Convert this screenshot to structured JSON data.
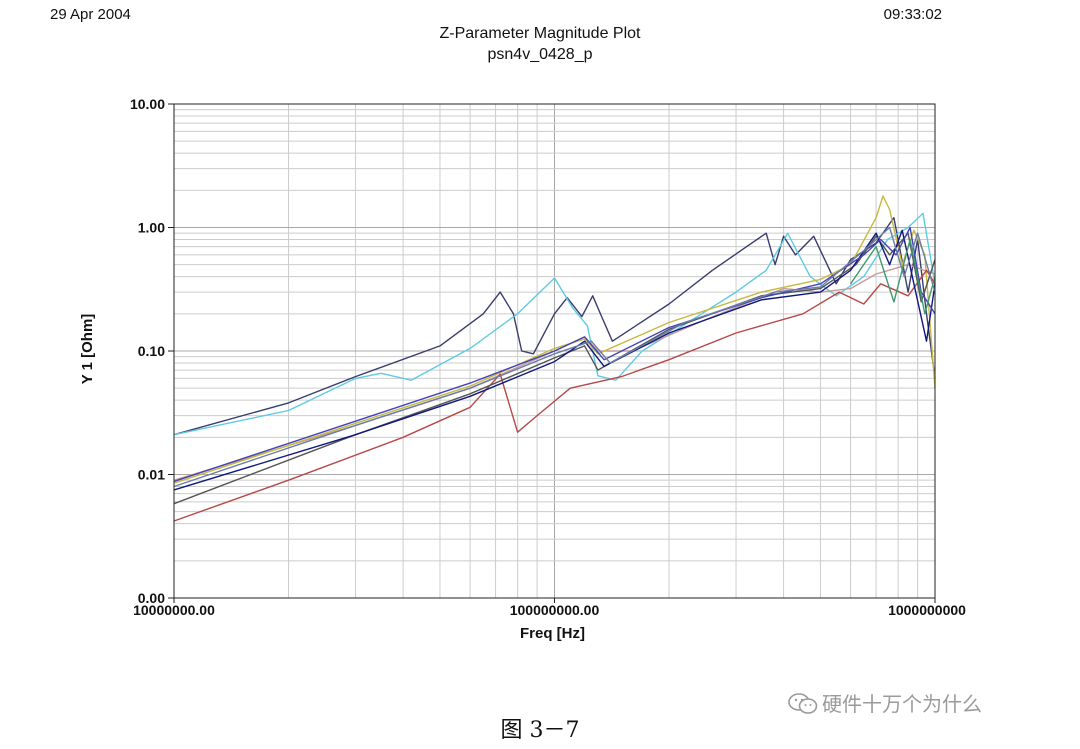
{
  "header": {
    "date": "29 Apr 2004",
    "time": "09:33:02"
  },
  "caption": "图 3－7",
  "watermark": {
    "text": "硬件十万个为什么",
    "icon": "wechat-icon"
  },
  "colors": {
    "grid": "#cccccc",
    "frame": "#222222",
    "background": "#ffffff"
  },
  "chart_data": {
    "type": "line",
    "title": "Z-Parameter Magnitude Plot",
    "subtitle": "psn4v_0428_p",
    "xlabel": "Freq [Hz]",
    "ylabel": "Y 1  [Ohm]",
    "x_scale": "log",
    "y_scale": "log",
    "xlim": [
      10000000,
      1000000000
    ],
    "ylim": [
      0.001,
      10
    ],
    "x_ticks": [
      10000000,
      100000000,
      1000000000
    ],
    "x_tick_labels": [
      "10000000.00",
      "100000000.00",
      "1000000000"
    ],
    "y_ticks": [
      0.001,
      0.01,
      0.1,
      1,
      10
    ],
    "y_tick_labels": [
      "0.00",
      "0.01",
      "0.10",
      "1.00",
      "10.00"
    ],
    "grid": true,
    "series": [
      {
        "color": "#3a3d6e",
        "points": [
          [
            10000000,
            0.021
          ],
          [
            20000000,
            0.038
          ],
          [
            30000000,
            0.062
          ],
          [
            50000000,
            0.11
          ],
          [
            65000000,
            0.2
          ],
          [
            72000000,
            0.3
          ],
          [
            78000000,
            0.2
          ],
          [
            82000000,
            0.1
          ],
          [
            88000000,
            0.095
          ],
          [
            100000000,
            0.2
          ],
          [
            108000000,
            0.27
          ],
          [
            118000000,
            0.19
          ],
          [
            126000000,
            0.28
          ],
          [
            134000000,
            0.18
          ],
          [
            142000000,
            0.12
          ],
          [
            200000000,
            0.24
          ],
          [
            260000000,
            0.45
          ],
          [
            320000000,
            0.7
          ],
          [
            360000000,
            0.9
          ],
          [
            380000000,
            0.5
          ],
          [
            400000000,
            0.85
          ],
          [
            430000000,
            0.6
          ],
          [
            480000000,
            0.85
          ],
          [
            550000000,
            0.35
          ],
          [
            600000000,
            0.55
          ],
          [
            700000000,
            0.75
          ],
          [
            780000000,
            1.2
          ],
          [
            850000000,
            0.3
          ],
          [
            900000000,
            0.8
          ],
          [
            950000000,
            0.2
          ],
          [
            1000000000,
            0.06
          ]
        ]
      },
      {
        "color": "#5ecbe3",
        "points": [
          [
            10000000,
            0.021
          ],
          [
            20000000,
            0.033
          ],
          [
            30000000,
            0.06
          ],
          [
            35000000,
            0.066
          ],
          [
            42000000,
            0.058
          ],
          [
            60000000,
            0.105
          ],
          [
            80000000,
            0.2
          ],
          [
            100000000,
            0.39
          ],
          [
            112000000,
            0.22
          ],
          [
            122000000,
            0.16
          ],
          [
            130000000,
            0.063
          ],
          [
            145000000,
            0.058
          ],
          [
            170000000,
            0.1
          ],
          [
            210000000,
            0.15
          ],
          [
            300000000,
            0.3
          ],
          [
            360000000,
            0.45
          ],
          [
            410000000,
            0.9
          ],
          [
            470000000,
            0.4
          ],
          [
            550000000,
            0.28
          ],
          [
            650000000,
            0.4
          ],
          [
            750000000,
            0.8
          ],
          [
            850000000,
            1.0
          ],
          [
            930000000,
            1.3
          ],
          [
            1000000000,
            0.35
          ]
        ]
      },
      {
        "color": "#c89a9a",
        "points": [
          [
            10000000,
            0.009
          ],
          [
            30000000,
            0.025
          ],
          [
            60000000,
            0.05
          ],
          [
            100000000,
            0.1
          ],
          [
            120000000,
            0.13
          ],
          [
            130000000,
            0.1
          ],
          [
            160000000,
            0.1
          ],
          [
            250000000,
            0.18
          ],
          [
            400000000,
            0.32
          ],
          [
            500000000,
            0.3
          ],
          [
            600000000,
            0.32
          ],
          [
            700000000,
            0.42
          ],
          [
            850000000,
            0.5
          ],
          [
            1000000000,
            0.42
          ]
        ]
      },
      {
        "color": "#c8b840",
        "points": [
          [
            10000000,
            0.0085
          ],
          [
            30000000,
            0.026
          ],
          [
            60000000,
            0.052
          ],
          [
            100000000,
            0.105
          ],
          [
            120000000,
            0.125
          ],
          [
            130000000,
            0.095
          ],
          [
            200000000,
            0.17
          ],
          [
            350000000,
            0.3
          ],
          [
            500000000,
            0.38
          ],
          [
            600000000,
            0.5
          ],
          [
            700000000,
            1.2
          ],
          [
            730000000,
            1.8
          ],
          [
            760000000,
            1.4
          ],
          [
            820000000,
            0.5
          ],
          [
            880000000,
            0.95
          ],
          [
            940000000,
            0.6
          ],
          [
            1000000000,
            0.05
          ]
        ]
      },
      {
        "color": "#b84848",
        "points": [
          [
            10000000,
            0.0042
          ],
          [
            20000000,
            0.009
          ],
          [
            40000000,
            0.02
          ],
          [
            60000000,
            0.035
          ],
          [
            72000000,
            0.065
          ],
          [
            80000000,
            0.022
          ],
          [
            90000000,
            0.03
          ],
          [
            110000000,
            0.05
          ],
          [
            150000000,
            0.062
          ],
          [
            200000000,
            0.085
          ],
          [
            300000000,
            0.14
          ],
          [
            450000000,
            0.2
          ],
          [
            560000000,
            0.3
          ],
          [
            650000000,
            0.24
          ],
          [
            720000000,
            0.35
          ],
          [
            850000000,
            0.28
          ],
          [
            950000000,
            0.45
          ],
          [
            1000000000,
            0.35
          ]
        ]
      },
      {
        "color": "#555555",
        "points": [
          [
            10000000,
            0.0058
          ],
          [
            30000000,
            0.021
          ],
          [
            60000000,
            0.045
          ],
          [
            100000000,
            0.088
          ],
          [
            120000000,
            0.11
          ],
          [
            130000000,
            0.07
          ],
          [
            200000000,
            0.15
          ],
          [
            350000000,
            0.28
          ],
          [
            500000000,
            0.32
          ],
          [
            620000000,
            0.5
          ],
          [
            700000000,
            0.85
          ],
          [
            760000000,
            0.6
          ],
          [
            850000000,
            0.9
          ],
          [
            920000000,
            0.25
          ],
          [
            1000000000,
            0.55
          ]
        ]
      },
      {
        "color": "#101880",
        "points": [
          [
            10000000,
            0.0075
          ],
          [
            30000000,
            0.021
          ],
          [
            60000000,
            0.043
          ],
          [
            100000000,
            0.082
          ],
          [
            120000000,
            0.12
          ],
          [
            135000000,
            0.075
          ],
          [
            200000000,
            0.14
          ],
          [
            350000000,
            0.26
          ],
          [
            500000000,
            0.3
          ],
          [
            600000000,
            0.45
          ],
          [
            700000000,
            0.9
          ],
          [
            760000000,
            0.5
          ],
          [
            820000000,
            0.95
          ],
          [
            880000000,
            0.35
          ],
          [
            950000000,
            0.12
          ],
          [
            1000000000,
            0.35
          ]
        ]
      },
      {
        "color": "#4444b8",
        "points": [
          [
            10000000,
            0.0088
          ],
          [
            30000000,
            0.027
          ],
          [
            60000000,
            0.055
          ],
          [
            100000000,
            0.1
          ],
          [
            120000000,
            0.13
          ],
          [
            135000000,
            0.085
          ],
          [
            200000000,
            0.155
          ],
          [
            350000000,
            0.27
          ],
          [
            500000000,
            0.35
          ],
          [
            650000000,
            0.6
          ],
          [
            720000000,
            0.8
          ],
          [
            790000000,
            0.6
          ],
          [
            860000000,
            1.0
          ],
          [
            920000000,
            0.3
          ],
          [
            1000000000,
            0.2
          ]
        ]
      },
      {
        "color": "#6a7fa8",
        "points": [
          [
            10000000,
            0.008
          ],
          [
            30000000,
            0.025
          ],
          [
            60000000,
            0.05
          ],
          [
            100000000,
            0.095
          ],
          [
            125000000,
            0.12
          ],
          [
            140000000,
            0.08
          ],
          [
            220000000,
            0.17
          ],
          [
            380000000,
            0.3
          ],
          [
            500000000,
            0.33
          ],
          [
            650000000,
            0.65
          ],
          [
            760000000,
            1.0
          ],
          [
            830000000,
            0.4
          ],
          [
            900000000,
            0.9
          ],
          [
            1000000000,
            0.3
          ]
        ]
      },
      {
        "color": "#3e9a6e",
        "points": [
          [
            600000000,
            0.35
          ],
          [
            700000000,
            0.7
          ],
          [
            780000000,
            0.25
          ],
          [
            860000000,
            0.8
          ],
          [
            940000000,
            0.2
          ],
          [
            1000000000,
            0.4
          ]
        ]
      }
    ]
  }
}
